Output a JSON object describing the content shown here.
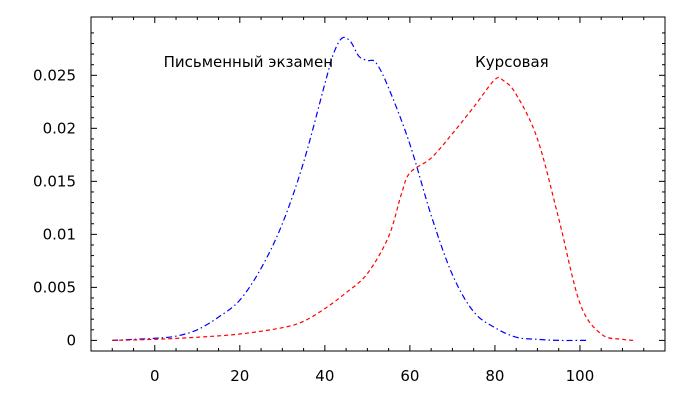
{
  "chart_data": {
    "type": "line",
    "title": "",
    "xlabel": "",
    "ylabel": "",
    "xlim": [
      -15,
      120
    ],
    "ylim": [
      -0.001,
      0.0305
    ],
    "xticks": [
      "0",
      "20",
      "40",
      "60",
      "80",
      "100"
    ],
    "xtick_values": [
      0,
      20,
      40,
      60,
      80,
      100
    ],
    "yticks": [
      "0",
      "0.005",
      "0.01",
      "0.015",
      "0.02",
      "0.025"
    ],
    "ytick_values": [
      0,
      0.005,
      0.01,
      0.015,
      0.02,
      0.025
    ],
    "grid": false,
    "annotations": [
      {
        "text": "Письменный экзамен",
        "x": 22,
        "y": 0.0258,
        "series": 0
      },
      {
        "text": "Курсовая",
        "x": 84,
        "y": 0.0258,
        "series": 1
      }
    ],
    "series": [
      {
        "name": "Письменный экзамен",
        "color": "#0000ff",
        "style": "dashdot",
        "x": [
          -10,
          -5,
          0,
          5,
          10,
          15,
          20,
          25,
          30,
          35,
          40,
          42,
          44,
          46,
          48,
          50,
          52,
          55,
          60,
          65,
          70,
          75,
          80,
          85,
          90,
          95,
          100,
          102
        ],
        "y": [
          0,
          0.0001,
          0.0002,
          0.0004,
          0.001,
          0.0022,
          0.0038,
          0.0068,
          0.011,
          0.0168,
          0.0242,
          0.027,
          0.0285,
          0.0282,
          0.0268,
          0.0264,
          0.0262,
          0.0238,
          0.0185,
          0.0118,
          0.0062,
          0.0027,
          0.0012,
          0.0003,
          0.0001,
          0,
          0,
          0
        ]
      },
      {
        "name": "Курсовая",
        "color": "#ff0000",
        "style": "dashed",
        "x": [
          -10,
          0,
          10,
          20,
          30,
          35,
          40,
          45,
          50,
          55,
          58,
          60,
          65,
          70,
          75,
          80,
          82,
          85,
          90,
          95,
          100,
          105,
          110,
          113
        ],
        "y": [
          0,
          0.0001,
          0.0003,
          0.0006,
          0.0012,
          0.0018,
          0.003,
          0.0045,
          0.0063,
          0.0098,
          0.0138,
          0.0158,
          0.0172,
          0.0195,
          0.022,
          0.0246,
          0.0245,
          0.0232,
          0.019,
          0.0115,
          0.0035,
          0.0006,
          0.0001,
          0
        ]
      }
    ]
  }
}
